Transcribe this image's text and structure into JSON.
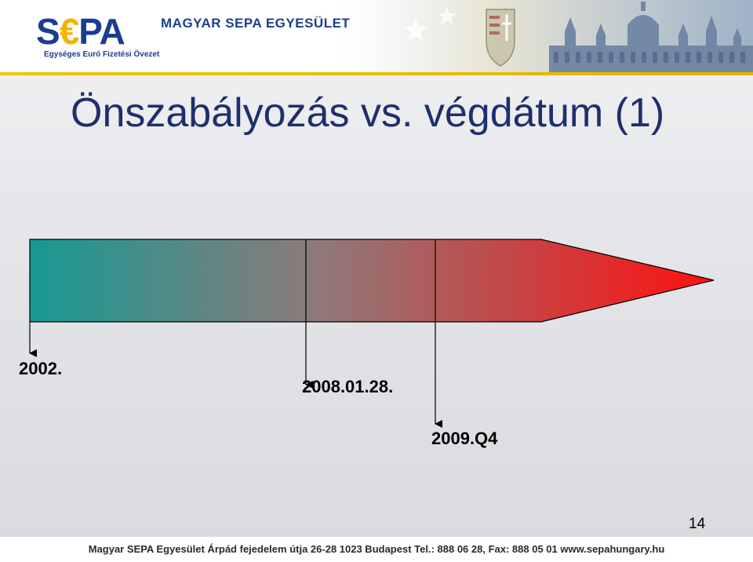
{
  "header": {
    "logo_prefix": "S",
    "logo_euro": "€",
    "logo_suffix": "PA",
    "logo_tagline": "Egységes Euró Fizetési Övezet",
    "org_name": "MAGYAR SEPA EGYESÜLET"
  },
  "title": "Önszabályozás vs. végdátum (1)",
  "timeline": {
    "start_color": "#169a92",
    "end_color": "#ff1010",
    "milestones": [
      {
        "label": "2002."
      },
      {
        "label": "2008.01.28."
      },
      {
        "label": "2009.Q4"
      }
    ]
  },
  "page_number": "14",
  "footer": "Magyar SEPA Egyesület Árpád fejedelem útja 26-28 1023 Budapest Tel.: 888 06 28, Fax: 888 05 01 www.sepahungary.hu"
}
